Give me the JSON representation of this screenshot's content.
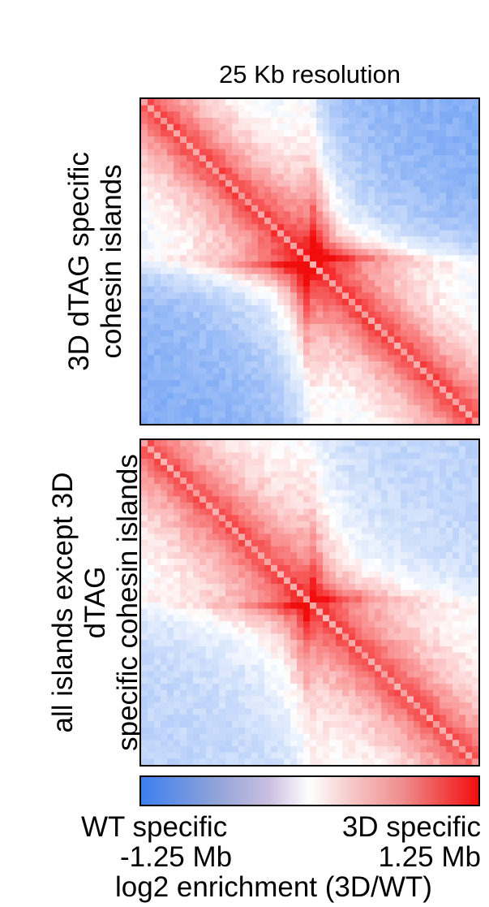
{
  "chart_data": {
    "type": "heatmap",
    "title": "25 Kb resolution",
    "panels": [
      {
        "label_line1": "3D dTAG specific",
        "label_line2": "cohesin islands",
        "quadrant_pattern": "strong",
        "diagonal_enrichment": 0.85,
        "cross_enrichment": 0.9,
        "off_block_depletion": -0.65
      },
      {
        "label_line1": "all islands except 3D dTAG",
        "label_line2": "specific cohesin islands",
        "quadrant_pattern": "weak",
        "diagonal_enrichment": 0.8,
        "cross_enrichment": 0.55,
        "off_block_depletion": -0.35
      }
    ],
    "colorbar": {
      "left_name": "WT specific",
      "right_name": "3D specific",
      "left_value": "-1.25 Mb",
      "right_value": "1.25 Mb",
      "label": "log2 enrichment (3D/WT)",
      "colors": [
        "#3d7ff0",
        "#ffffff",
        "#f20d0d"
      ]
    }
  }
}
